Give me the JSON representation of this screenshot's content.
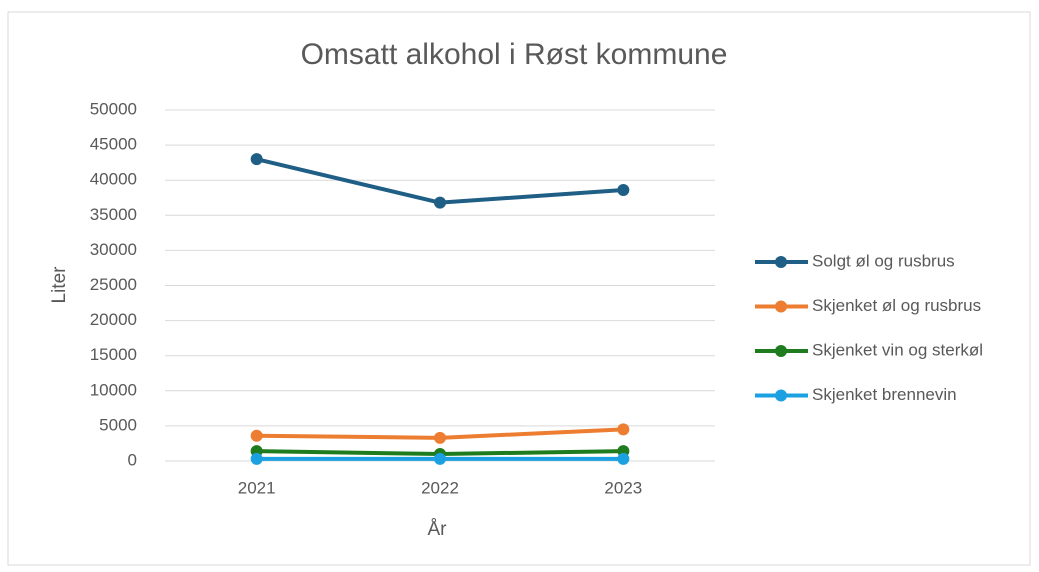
{
  "chart_data": {
    "type": "line",
    "title": "Omsatt alkohol i Røst kommune",
    "x_label": "År",
    "y_label": "Liter",
    "categories": [
      "2021",
      "2022",
      "2023"
    ],
    "series": [
      {
        "name": "Solgt øl og rusbrus",
        "color": "#1f5f86",
        "values": [
          43000,
          36800,
          38600
        ]
      },
      {
        "name": "Skjenket øl og rusbrus",
        "color": "#ed7d31",
        "values": [
          3600,
          3300,
          4500
        ]
      },
      {
        "name": "Skjenket vin og sterkøl",
        "color": "#1e7b1e",
        "values": [
          1400,
          1000,
          1400
        ]
      },
      {
        "name": "Skjenket brennevin",
        "color": "#1ba1e2",
        "values": [
          300,
          300,
          300
        ]
      }
    ],
    "ylim": [
      0,
      50000
    ],
    "yticks": [
      0,
      5000,
      10000,
      15000,
      20000,
      25000,
      30000,
      35000,
      40000,
      45000,
      50000
    ],
    "grid": true,
    "legend": "right"
  }
}
